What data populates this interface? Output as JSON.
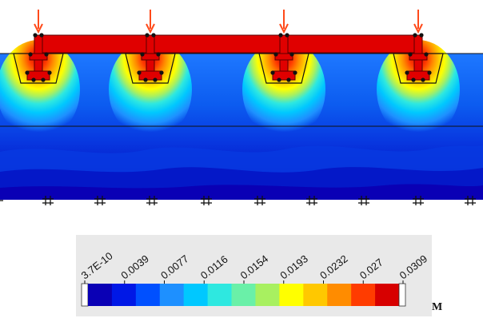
{
  "diagram": {
    "kind": "pile-raft displacement contour plot",
    "pile_count": 4,
    "load_arrow_count": 4
  },
  "legend": {
    "unit": "M",
    "min_label": "3.7E-10",
    "max_label": "0.0309",
    "tick_labels": [
      "3.7E-10",
      "0.0039",
      "0.0077",
      "0.0116",
      "0.0154",
      "0.0193",
      "0.0232",
      "0.027",
      "0.0309"
    ],
    "colors": [
      "#0a00b5",
      "#0018e6",
      "#0050ff",
      "#1e90ff",
      "#00c8ff",
      "#2ee8e0",
      "#6af0a8",
      "#a8f060",
      "#ffff00",
      "#ffc800",
      "#ff8c00",
      "#ff3c00",
      "#d70000"
    ]
  },
  "colors": {
    "raft": "#e00000",
    "arrow": "#ff4a1a",
    "deep_blue": "#0a10b8"
  }
}
